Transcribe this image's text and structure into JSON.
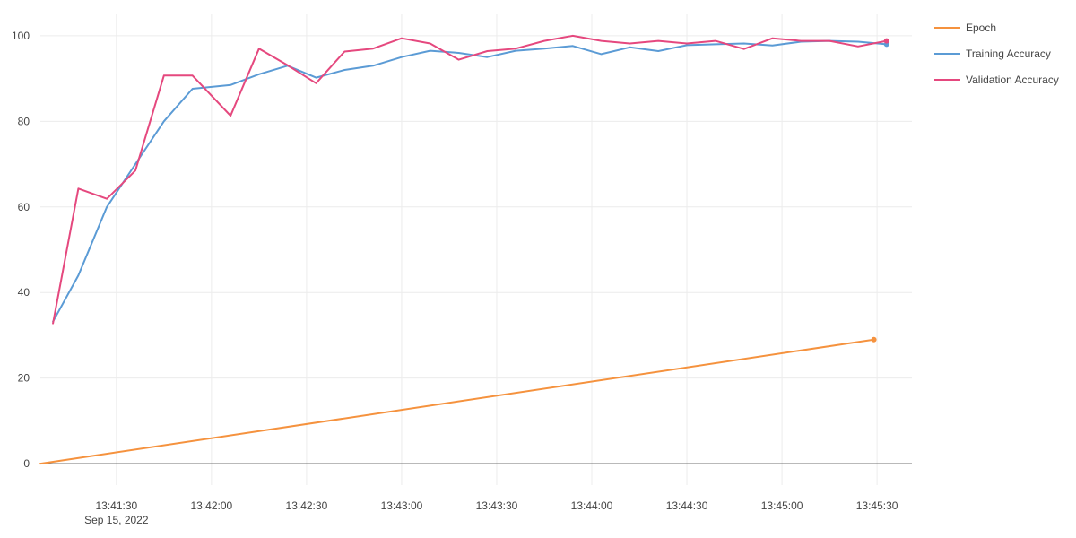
{
  "chart_data": {
    "type": "line",
    "title": "",
    "xlabel": "",
    "ylabel": "",
    "x_axis": {
      "type": "time",
      "range": [
        "2022-09-15 13:41:06",
        "2022-09-15 13:45:41"
      ],
      "ticks": [
        {
          "t": "2022-09-15 13:41:30",
          "label": "13:41:30",
          "sublabel": "Sep 15, 2022"
        },
        {
          "t": "2022-09-15 13:42:00",
          "label": "13:42:00"
        },
        {
          "t": "2022-09-15 13:42:30",
          "label": "13:42:30"
        },
        {
          "t": "2022-09-15 13:43:00",
          "label": "13:43:00"
        },
        {
          "t": "2022-09-15 13:43:30",
          "label": "13:43:30"
        },
        {
          "t": "2022-09-15 13:44:00",
          "label": "13:44:00"
        },
        {
          "t": "2022-09-15 13:44:30",
          "label": "13:44:30"
        },
        {
          "t": "2022-09-15 13:45:00",
          "label": "13:45:00"
        },
        {
          "t": "2022-09-15 13:45:30",
          "label": "13:45:30"
        }
      ]
    },
    "y_axis": {
      "range": [
        -5,
        105
      ],
      "ticks": [
        0,
        20,
        40,
        60,
        80,
        100
      ]
    },
    "grid": true,
    "legend_position": "top-right",
    "series": [
      {
        "name": "Epoch",
        "color": "#f5923e",
        "points": [
          [
            "2022-09-15 13:41:06",
            0
          ],
          [
            "2022-09-15 13:45:29",
            29
          ]
        ],
        "end_marker": true
      },
      {
        "name": "Training Accuracy",
        "color": "#5b9bd5",
        "points": [
          [
            "2022-09-15 13:41:10",
            33.2
          ],
          [
            "2022-09-15 13:41:18",
            44.0
          ],
          [
            "2022-09-15 13:41:27",
            60.0
          ],
          [
            "2022-09-15 13:41:36",
            70.0
          ],
          [
            "2022-09-15 13:41:45",
            80.0
          ],
          [
            "2022-09-15 13:41:54",
            87.6
          ],
          [
            "2022-09-15 13:42:06",
            88.5
          ],
          [
            "2022-09-15 13:42:15",
            91.0
          ],
          [
            "2022-09-15 13:42:24",
            93.0
          ],
          [
            "2022-09-15 13:42:33",
            90.2
          ],
          [
            "2022-09-15 13:42:42",
            92.0
          ],
          [
            "2022-09-15 13:42:51",
            93.0
          ],
          [
            "2022-09-15 13:43:00",
            95.0
          ],
          [
            "2022-09-15 13:43:09",
            96.5
          ],
          [
            "2022-09-15 13:43:18",
            96.0
          ],
          [
            "2022-09-15 13:43:27",
            95.0
          ],
          [
            "2022-09-15 13:43:36",
            96.5
          ],
          [
            "2022-09-15 13:43:45",
            97.0
          ],
          [
            "2022-09-15 13:43:54",
            97.6
          ],
          [
            "2022-09-15 13:44:03",
            95.7
          ],
          [
            "2022-09-15 13:44:12",
            97.3
          ],
          [
            "2022-09-15 13:44:21",
            96.4
          ],
          [
            "2022-09-15 13:44:30",
            97.8
          ],
          [
            "2022-09-15 13:44:39",
            98.0
          ],
          [
            "2022-09-15 13:44:48",
            98.2
          ],
          [
            "2022-09-15 13:44:57",
            97.7
          ],
          [
            "2022-09-15 13:45:06",
            98.6
          ],
          [
            "2022-09-15 13:45:15",
            98.8
          ],
          [
            "2022-09-15 13:45:24",
            98.6
          ],
          [
            "2022-09-15 13:45:33",
            98.0
          ]
        ],
        "end_marker": true
      },
      {
        "name": "Validation Accuracy",
        "color": "#e5487e",
        "points": [
          [
            "2022-09-15 13:41:10",
            32.8
          ],
          [
            "2022-09-15 13:41:18",
            64.3
          ],
          [
            "2022-09-15 13:41:27",
            61.9
          ],
          [
            "2022-09-15 13:41:36",
            68.5
          ],
          [
            "2022-09-15 13:41:45",
            90.7
          ],
          [
            "2022-09-15 13:41:54",
            90.7
          ],
          [
            "2022-09-15 13:42:06",
            81.3
          ],
          [
            "2022-09-15 13:42:15",
            97.0
          ],
          [
            "2022-09-15 13:42:24",
            93.1
          ],
          [
            "2022-09-15 13:42:33",
            88.9
          ],
          [
            "2022-09-15 13:42:42",
            96.3
          ],
          [
            "2022-09-15 13:42:51",
            97.0
          ],
          [
            "2022-09-15 13:43:00",
            99.4
          ],
          [
            "2022-09-15 13:43:09",
            98.2
          ],
          [
            "2022-09-15 13:43:18",
            94.4
          ],
          [
            "2022-09-15 13:43:27",
            96.4
          ],
          [
            "2022-09-15 13:43:36",
            97.0
          ],
          [
            "2022-09-15 13:43:45",
            98.8
          ],
          [
            "2022-09-15 13:43:54",
            100.0
          ],
          [
            "2022-09-15 13:44:03",
            98.8
          ],
          [
            "2022-09-15 13:44:12",
            98.2
          ],
          [
            "2022-09-15 13:44:21",
            98.8
          ],
          [
            "2022-09-15 13:44:30",
            98.2
          ],
          [
            "2022-09-15 13:44:39",
            98.8
          ],
          [
            "2022-09-15 13:44:48",
            96.9
          ],
          [
            "2022-09-15 13:44:57",
            99.4
          ],
          [
            "2022-09-15 13:45:06",
            98.8
          ],
          [
            "2022-09-15 13:45:15",
            98.8
          ],
          [
            "2022-09-15 13:45:24",
            97.5
          ],
          [
            "2022-09-15 13:45:33",
            98.8
          ]
        ],
        "end_marker": true
      }
    ]
  }
}
